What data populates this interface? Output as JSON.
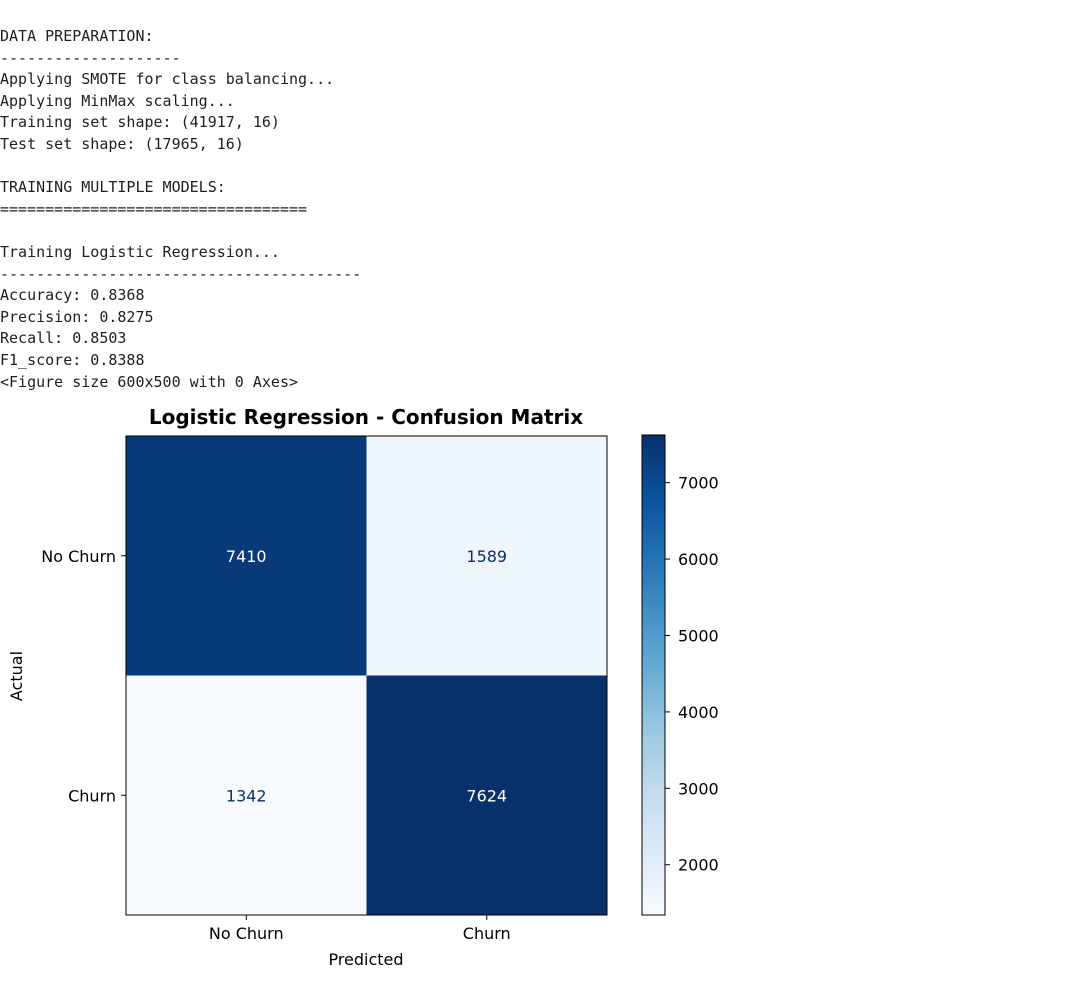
{
  "output_log": {
    "lines": [
      "DATA PREPARATION:",
      "--------------------",
      "Applying SMOTE for class balancing...",
      "Applying MinMax scaling...",
      "Training set shape: (41917, 16)",
      "Test set shape: (17965, 16)",
      "",
      "TRAINING MULTIPLE MODELS:",
      "==================================",
      "",
      "Training Logistic Regression...",
      "----------------------------------------",
      "Accuracy: 0.8368",
      "Precision: 0.8275",
      "Recall: 0.8503",
      "F1_score: 0.8388",
      "<Figure size 600x500 with 0 Axes>"
    ]
  },
  "chart_data": {
    "type": "heatmap",
    "title": "Logistic Regression - Confusion Matrix",
    "xlabel": "Predicted",
    "ylabel": "Actual",
    "x_categories": [
      "No Churn",
      "Churn"
    ],
    "y_categories": [
      "No Churn",
      "Churn"
    ],
    "values": [
      [
        7410,
        1589
      ],
      [
        1342,
        7624
      ]
    ],
    "colormap": "Blues",
    "colorbar": {
      "min": 1342,
      "max": 7624,
      "ticks": [
        2000,
        3000,
        4000,
        5000,
        6000,
        7000
      ]
    },
    "colors": {
      "high": "#08306b",
      "low": "#f7fbff",
      "dark_text": "#08306b",
      "light_text": "#ffffff"
    }
  }
}
